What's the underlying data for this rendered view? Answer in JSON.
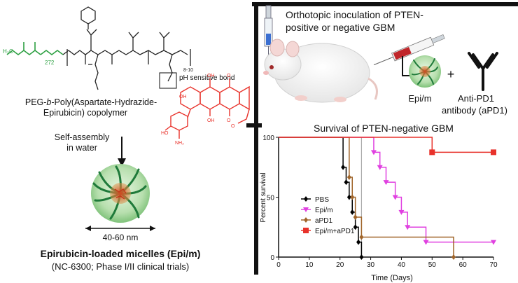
{
  "left_panel": {
    "peg_subscript": "272",
    "repeat_subscript": "8-10",
    "ph_bond_label": "pH sensitive bond",
    "copolymer_line1_pre": "PEG-",
    "copolymer_line1_b": "b",
    "copolymer_line1_post": "-Poly(Aspartate-Hydrazide-",
    "copolymer_line2": "Epirubicin) copolymer",
    "self_assembly_line1": "Self-assembly",
    "self_assembly_line2": "in water",
    "size_label": "40-60 nm",
    "micelle_title": "Epirubicin-loaded micelles (Epi/m)",
    "micelle_subtitle": "(NC-6300; Phase I/II clinical trials)"
  },
  "right_panel": {
    "inoculation_line1": "Orthotopic inoculation of PTEN-",
    "inoculation_line2": "positive or negative GBM",
    "plus": "+",
    "epi_label": "Epi/m",
    "antibody_line1": "Anti-PD1",
    "antibody_line2": "antibody (aPD1)"
  },
  "colors": {
    "peg": "#2ea043",
    "drug": "#e8322b",
    "pbs": "#000000",
    "epi_m": "#e040e0",
    "apd1": "#a0652a",
    "combo": "#e8322b"
  },
  "chart_data": {
    "type": "line",
    "title": "Survival of PTEN-negative GBM",
    "xlabel": "Time (Days)",
    "ylabel": "Percent survival",
    "xlim": [
      0,
      70
    ],
    "ylim": [
      0,
      100
    ],
    "xticks": [
      0,
      10,
      20,
      30,
      40,
      50,
      60,
      70
    ],
    "yticks": [
      0,
      50,
      100
    ],
    "legend_position": "left",
    "reference_line_x": 27,
    "series": [
      {
        "name": "PBS",
        "color_key": "pbs",
        "marker": "diamond",
        "x": [
          0,
          21,
          22,
          23,
          24,
          25,
          26,
          27
        ],
        "y": [
          100,
          75,
          62.5,
          50,
          37.5,
          25,
          12.5,
          0
        ]
      },
      {
        "name": "Epi/m",
        "color_key": "epi_m",
        "marker": "triangle-down",
        "x": [
          0,
          31,
          33,
          35,
          38,
          40,
          42,
          48,
          70
        ],
        "y": [
          100,
          87.5,
          75,
          62.5,
          50,
          37.5,
          25,
          12.5,
          12.5
        ]
      },
      {
        "name": "aPD1",
        "color_key": "apd1",
        "marker": "diamond",
        "x": [
          0,
          23,
          24,
          25,
          27,
          57
        ],
        "y": [
          100,
          66.7,
          50,
          33.3,
          16.7,
          0
        ]
      },
      {
        "name": "Epi/m+aPD1",
        "color_key": "combo",
        "marker": "square",
        "x": [
          0,
          50,
          70
        ],
        "y": [
          100,
          87.5,
          87.5
        ]
      }
    ]
  }
}
